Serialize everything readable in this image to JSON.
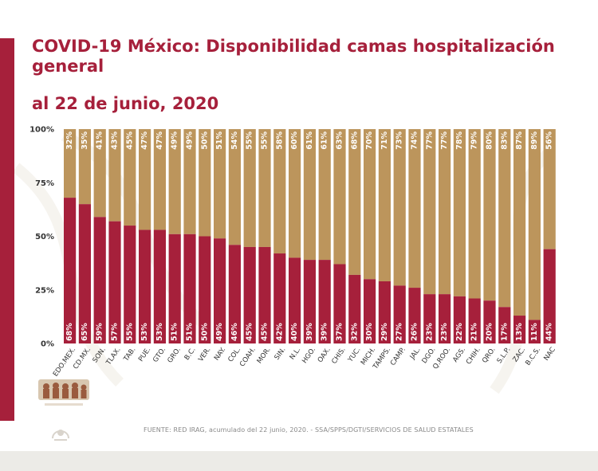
{
  "header": {
    "title": "COVID-19 México: Disponibilidad camas hospitalización general",
    "subtitle": "al 22 de junio, 2020"
  },
  "footer": {
    "source": "FUENTE: RED IRAG, acumulado del 22 junio, 2020. -   SSA/SPPS/DGTI/SERVICIOS DE SALUD ESTATALES"
  },
  "colors": {
    "occupied": "#a6203b",
    "available": "#bc955c",
    "accent": "#a6203b"
  },
  "icons": {
    "logo": "government-logo",
    "emblem": "national-emblem-icon"
  },
  "chart_data": {
    "type": "bar",
    "stacked": true,
    "percent": true,
    "categories": [
      "EDO.MEX.",
      "CD.MX.",
      "SON.",
      "TLAX.",
      "TAB.",
      "PUE.",
      "GTO.",
      "GRO.",
      "B.C.",
      "VER.",
      "NAY.",
      "COL.",
      "COAH.",
      "MOR.",
      "SIN.",
      "N.L.",
      "HGO.",
      "OAX.",
      "CHIS.",
      "YUC.",
      "MICH.",
      "TAMPS.",
      "CAMP.",
      "JAL.",
      "DGO.",
      "Q.ROO.",
      "AGS.",
      "CHIH.",
      "QRO.",
      "S.L.P.",
      "ZAC.",
      "B.C.S.",
      "NAC"
    ],
    "series": [
      {
        "values": [
          68,
          65,
          59,
          57,
          55,
          53,
          53,
          51,
          51,
          50,
          49,
          46,
          45,
          45,
          42,
          40,
          39,
          39,
          37,
          32,
          30,
          29,
          27,
          26,
          23,
          23,
          22,
          21,
          20,
          17,
          13,
          11,
          44
        ]
      },
      {
        "values": [
          32,
          35,
          41,
          43,
          45,
          47,
          47,
          49,
          49,
          50,
          51,
          54,
          55,
          55,
          58,
          60,
          61,
          61,
          63,
          68,
          70,
          71,
          73,
          74,
          77,
          77,
          78,
          79,
          80,
          83,
          87,
          89,
          56
        ]
      }
    ],
    "y_ticks": [
      "0%",
      "25%",
      "50%",
      "75%",
      "100%"
    ],
    "ylim": [
      0,
      100
    ],
    "grid": false,
    "legend": "none"
  }
}
